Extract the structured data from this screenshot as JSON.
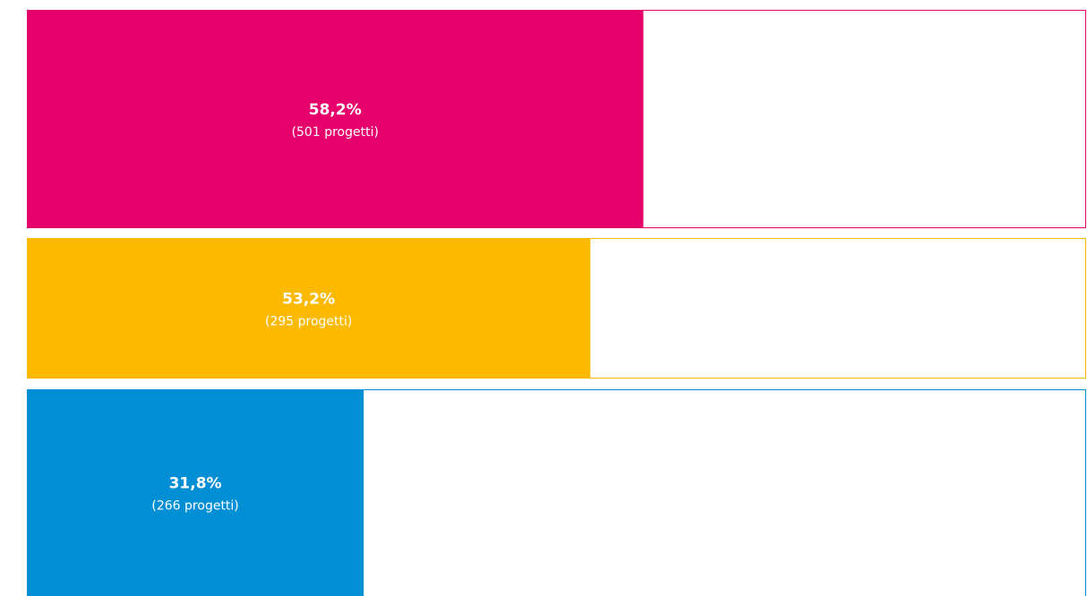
{
  "chart_data": {
    "type": "hbar",
    "values": [
      58.2,
      53.2,
      31.8
    ],
    "value_labels": [
      "58,2%",
      "53,2%",
      "31,8%"
    ],
    "sublabels": [
      "(501 progetti)",
      "(295 progetti)",
      "(266 progetti)"
    ],
    "colors": [
      "#e6006b",
      "#fbb900",
      "#008fd5"
    ],
    "xlim": [
      0,
      100
    ]
  }
}
